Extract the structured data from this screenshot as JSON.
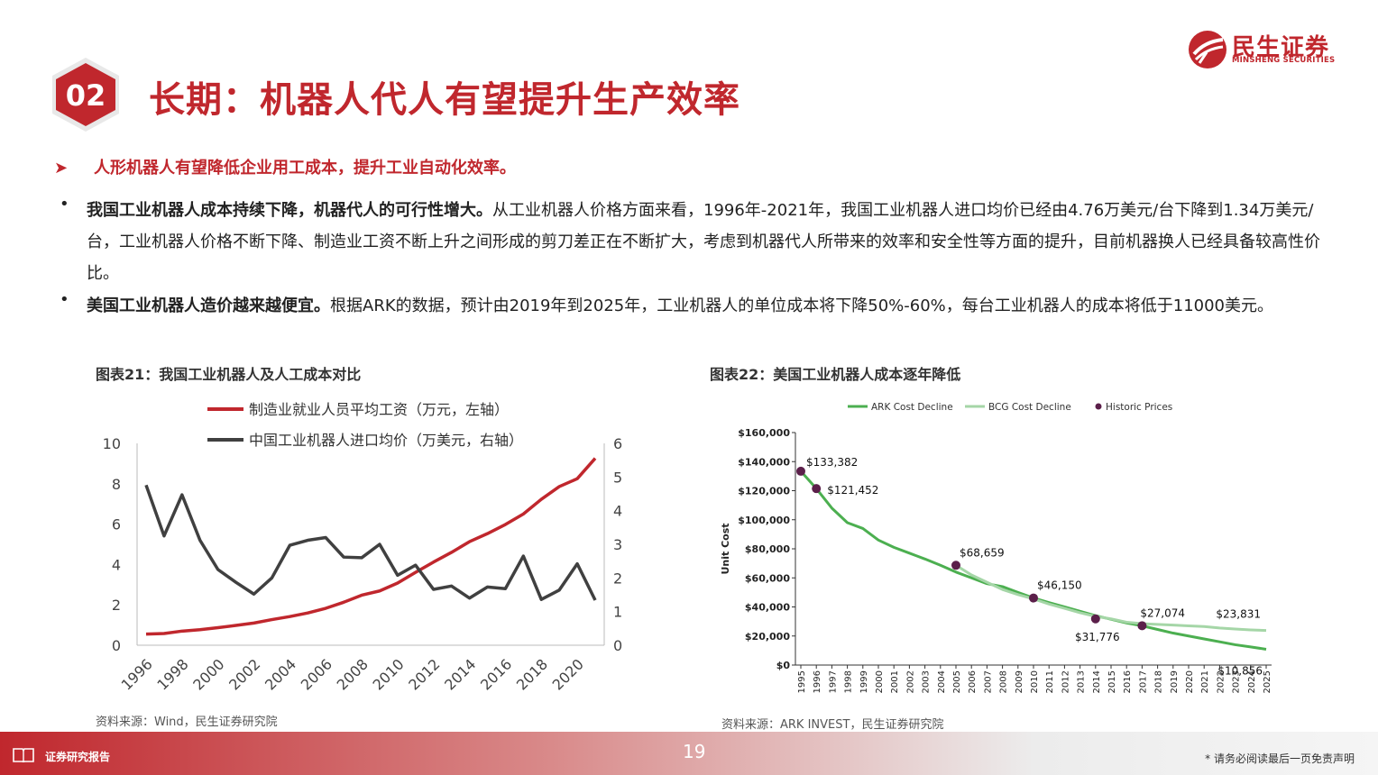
{
  "header": {
    "number": "02",
    "title": "长期：机器人代人有望提升生产效率",
    "logo_cn": "民生证券",
    "logo_en": "MINSHENG SECURITIES"
  },
  "lead": "人形机器人有望降低企业用工成本，提升工业自动化效率。",
  "bullets": [
    {
      "bold": "我国工业机器人成本持续下降，机器代人的可行性增大。",
      "text": "从工业机器人价格方面来看，1996年-2021年，我国工业机器人进口均价已经由4.76万美元/台下降到1.34万美元/台，工业机器人价格不断下降、制造业工资不断上升之间形成的剪刀差正在不断扩大，考虑到机器代人所带来的效率和安全性等方面的提升，目前机器换人已经具备较高性价比。"
    },
    {
      "bold": "美国工业机器人造价越来越便宜。",
      "text": "根据ARK的数据，预计由2019年到2025年，工业机器人的单位成本将下降50%-60%，每台工业机器人的成本将低于11000美元。"
    }
  ],
  "chart1_title": "图表21：我国工业机器人及人工成本对比",
  "chart2_title": "图表22：美国工业机器人成本逐年降低",
  "source1": "资料来源：Wind，民生证券研究院",
  "source2": "资料来源：ARK INVEST，民生证券研究院",
  "footer": {
    "label": "证券研究报告",
    "page": "19",
    "disclaimer": "* 请务必阅读最后一页免责声明"
  },
  "chart_data": [
    {
      "type": "line",
      "title": "图表21：我国工业机器人及人工成本对比",
      "x": [
        1996,
        1997,
        1998,
        1999,
        2000,
        2001,
        2002,
        2003,
        2004,
        2005,
        2006,
        2007,
        2008,
        2009,
        2010,
        2011,
        2012,
        2013,
        2014,
        2015,
        2016,
        2017,
        2018,
        2019,
        2020,
        2021
      ],
      "x_tick_labels": [
        "1996",
        "1998",
        "2000",
        "2002",
        "2004",
        "2006",
        "2008",
        "2010",
        "2012",
        "2014",
        "2016",
        "2018",
        "2020"
      ],
      "y_left": {
        "ylim": [
          0,
          10
        ],
        "ticks": [
          "0",
          "2",
          "4",
          "6",
          "8",
          "10"
        ]
      },
      "y_right": {
        "ylim": [
          0,
          6
        ],
        "ticks": [
          "0",
          "1",
          "2",
          "3",
          "4",
          "5",
          "6"
        ]
      },
      "legend_position": "top",
      "series": [
        {
          "name": "制造业就业人员平均工资（万元，左轴）",
          "axis": "left",
          "color": "#c0272d",
          "values": [
            0.55,
            0.58,
            0.7,
            0.77,
            0.87,
            0.98,
            1.1,
            1.27,
            1.42,
            1.6,
            1.83,
            2.13,
            2.48,
            2.69,
            3.08,
            3.61,
            4.12,
            4.6,
            5.13,
            5.53,
            5.98,
            6.5,
            7.23,
            7.86,
            8.25,
            9.26
          ]
        },
        {
          "name": "中国工业机器人进口均价（万美元，右轴）",
          "axis": "right",
          "color": "#404040",
          "values": [
            4.76,
            3.25,
            4.47,
            3.12,
            2.25,
            1.87,
            1.52,
            2.0,
            2.97,
            3.12,
            3.2,
            2.62,
            2.6,
            3.0,
            2.08,
            2.38,
            1.66,
            1.76,
            1.4,
            1.73,
            1.68,
            2.65,
            1.36,
            1.64,
            2.42,
            1.34
          ]
        }
      ]
    },
    {
      "type": "line",
      "title": "图表22：美国工业机器人成本逐年降低",
      "ylabel": "Unit Cost",
      "ylim": [
        0,
        160000
      ],
      "y_tick_labels": [
        "$0",
        "$20,000",
        "$40,000",
        "$60,000",
        "$80,000",
        "$100,000",
        "$120,000",
        "$140,000",
        "$160,000"
      ],
      "x": [
        1995,
        1996,
        1997,
        1998,
        1999,
        2000,
        2001,
        2002,
        2003,
        2004,
        2005,
        2006,
        2007,
        2008,
        2009,
        2010,
        2011,
        2012,
        2013,
        2014,
        2015,
        2016,
        2017,
        2018,
        2019,
        2020,
        2021,
        2022,
        2023,
        2024,
        2025
      ],
      "legend_position": "top",
      "series": [
        {
          "name": "ARK Cost Decline",
          "color": "#4caf50",
          "values": [
            133382,
            121452,
            108000,
            98000,
            94000,
            86000,
            81000,
            77000,
            73000,
            68659,
            64000,
            60000,
            56000,
            54000,
            50000,
            46150,
            43000,
            40000,
            37000,
            34000,
            31500,
            29000,
            27000,
            24500,
            22000,
            20000,
            18000,
            16000,
            14000,
            12500,
            10856
          ]
        },
        {
          "name": "BCG Cost Decline",
          "color": "#a5d6a7",
          "x": [
            2005,
            2006,
            2007,
            2008,
            2009,
            2010,
            2011,
            2012,
            2013,
            2014,
            2015,
            2016,
            2017,
            2018,
            2019,
            2020,
            2021,
            2022,
            2023,
            2024,
            2025
          ],
          "values": [
            68659,
            62000,
            57000,
            52000,
            48500,
            45500,
            42000,
            39000,
            36000,
            33500,
            31776,
            29500,
            28500,
            28000,
            27500,
            27000,
            26500,
            25500,
            24800,
            24200,
            23831
          ]
        },
        {
          "name": "Historic Prices",
          "color": "#5b1f4a",
          "x": [
            1995,
            1996,
            2005,
            2010,
            2014,
            2017
          ],
          "values": [
            133382,
            121452,
            68659,
            46150,
            31776,
            27074
          ]
        }
      ],
      "annotations": [
        {
          "x": 1995,
          "label": "$133,382"
        },
        {
          "x": 1996,
          "label": "$121,452"
        },
        {
          "x": 2005,
          "label": "$68,659"
        },
        {
          "x": 2010,
          "label": "$46,150"
        },
        {
          "x": 2014,
          "label": "$31,776"
        },
        {
          "x": 2017,
          "label": "$27,074"
        },
        {
          "x": 2025,
          "label": "$23,831"
        },
        {
          "x": 2025,
          "label": "$10,856"
        }
      ]
    }
  ]
}
